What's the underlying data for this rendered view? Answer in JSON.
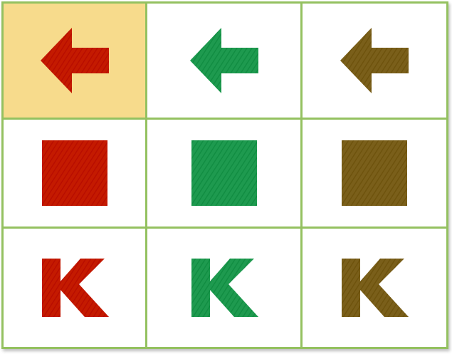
{
  "board": {
    "selected_cell": {
      "row": 0,
      "col": 0
    },
    "selection_color": "#f7db8c",
    "grid_line_color": "#94c160",
    "column_colors": [
      {
        "name": "red",
        "hex": "#c41a00"
      },
      {
        "name": "green",
        "hex": "#1e9a4f"
      },
      {
        "name": "olive",
        "hex": "#7a5f1a"
      }
    ],
    "row_shapes": [
      "left-arrow",
      "square",
      "letter-k"
    ],
    "cells": [
      [
        {
          "shape": "left-arrow",
          "color": "red"
        },
        {
          "shape": "left-arrow",
          "color": "green"
        },
        {
          "shape": "left-arrow",
          "color": "olive"
        }
      ],
      [
        {
          "shape": "square",
          "color": "red"
        },
        {
          "shape": "square",
          "color": "green"
        },
        {
          "shape": "square",
          "color": "olive"
        }
      ],
      [
        {
          "shape": "letter-k",
          "color": "red"
        },
        {
          "shape": "letter-k",
          "color": "green"
        },
        {
          "shape": "letter-k",
          "color": "olive"
        }
      ]
    ]
  }
}
